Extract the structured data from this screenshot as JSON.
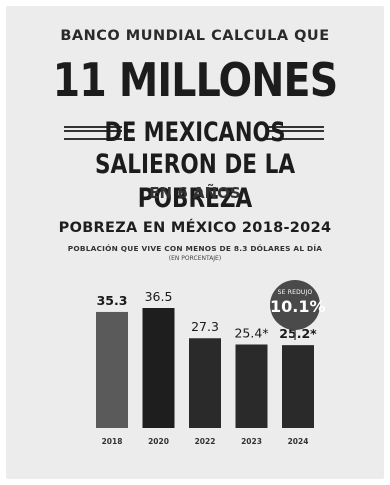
{
  "header": {
    "kicker": "BANCO MUNDIAL CALCULA QUE",
    "headline": "11 MILLONES",
    "line1": "DE MEXICANOS",
    "line2": "SALIERON DE LA POBREZA",
    "line3": "EN 6 AÑOS"
  },
  "badge": {
    "label": "SE REDUJO",
    "value": "10.1%"
  },
  "chart_data": {
    "type": "bar",
    "title": "POBREZA EN MÉXICO 2018-2024",
    "subtitle": "POBLACIÓN QUE VIVE CON MENOS DE 8.3 DÓLARES AL DÍA",
    "unit_note": "(EN PORCENTAJE)",
    "categories": [
      "2018",
      "2020",
      "2022",
      "2023",
      "2024"
    ],
    "values": [
      35.3,
      36.5,
      27.3,
      25.4,
      25.2
    ],
    "value_labels": [
      "35.3",
      "36.5",
      "27.3",
      "25.4*",
      "25.2*"
    ],
    "ylim": [
      0,
      36.5
    ],
    "grid": false,
    "bar_colors": [
      "#5a5a5a",
      "#1e1e1e",
      "#2a2a2a",
      "#2a2a2a",
      "#2a2a2a"
    ],
    "xlabel": "",
    "ylabel": ""
  }
}
